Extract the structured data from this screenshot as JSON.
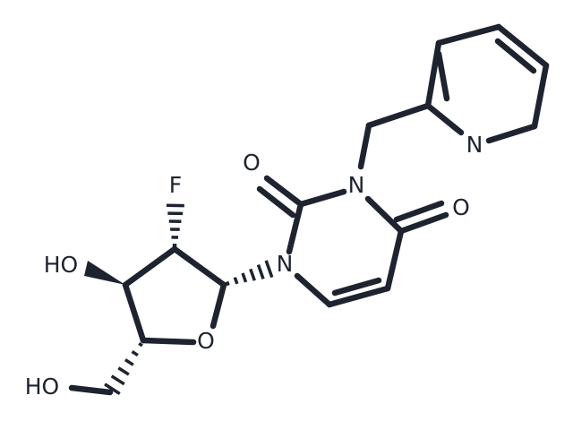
{
  "atoms": [
    {
      "label": "N"
    },
    {
      "label": "O"
    },
    {
      "label": "N"
    },
    {
      "label": "O"
    },
    {
      "label": "F"
    },
    {
      "label": "HO"
    },
    {
      "label": "N"
    },
    {
      "label": "O"
    },
    {
      "label": "HO"
    }
  ]
}
